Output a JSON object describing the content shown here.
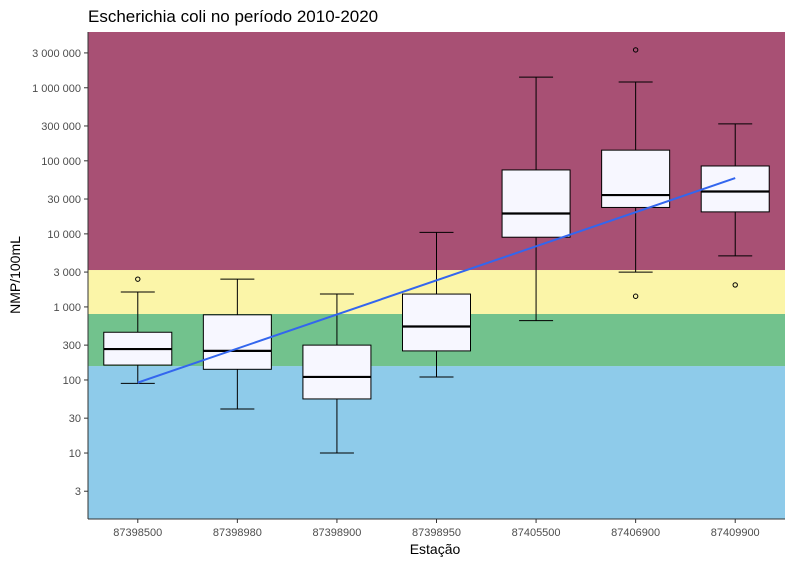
{
  "chart_data": {
    "type": "boxplot",
    "title": "Escherichia coli no período 2010-2020",
    "xlabel": "Estação",
    "ylabel": "NMP/100mL",
    "y_scale": "log10",
    "ylim": [
      1.25,
      5800000
    ],
    "yticks": [
      3,
      10,
      30,
      100,
      300,
      1000,
      3000,
      10000,
      30000,
      100000,
      300000,
      1000000,
      3000000
    ],
    "ytick_labels": [
      "3",
      "10",
      "30",
      "100",
      "300",
      "1 000",
      "3 000",
      "10 000",
      "30 000",
      "100 000",
      "300 000",
      "1 000 000",
      "3 000 000"
    ],
    "categories": [
      "87398500",
      "87398980",
      "87398900",
      "87398950",
      "87405500",
      "87406900",
      "87409900"
    ],
    "boxes": [
      {
        "whisker_low": 90,
        "q1": 160,
        "median": 265,
        "q3": 450,
        "whisker_high": 1600,
        "outliers": [
          2400
        ]
      },
      {
        "whisker_low": 40,
        "q1": 140,
        "median": 250,
        "q3": 780,
        "whisker_high": 2400,
        "outliers": []
      },
      {
        "whisker_low": 10,
        "q1": 55,
        "median": 110,
        "q3": 300,
        "whisker_high": 1500,
        "outliers": []
      },
      {
        "whisker_low": 110,
        "q1": 250,
        "median": 540,
        "q3": 1500,
        "whisker_high": 10500,
        "outliers": []
      },
      {
        "whisker_low": 650,
        "q1": 9000,
        "median": 19000,
        "q3": 75000,
        "whisker_high": 1400000,
        "outliers": []
      },
      {
        "whisker_low": 3000,
        "q1": 23000,
        "median": 34000,
        "q3": 140000,
        "whisker_high": 1200000,
        "outliers": [
          1400,
          3300000
        ]
      },
      {
        "whisker_low": 5000,
        "q1": 20000,
        "median": 38000,
        "q3": 85000,
        "whisker_high": 320000,
        "outliers": [
          2000
        ]
      }
    ],
    "trend_line": {
      "color": "#3366ee",
      "y_start": 92,
      "y_end": 58000
    },
    "bands": [
      {
        "from": 1.25,
        "to": 155,
        "color": "#8ecbea"
      },
      {
        "from": 155,
        "to": 800,
        "color": "#72c28d"
      },
      {
        "from": 800,
        "to": 3200,
        "color": "#fbf5a8"
      },
      {
        "from": 3200,
        "to": 5800000,
        "color": "#a85074"
      }
    ],
    "box_fill": "#f7f7ff",
    "grid": false,
    "legend": "none"
  }
}
